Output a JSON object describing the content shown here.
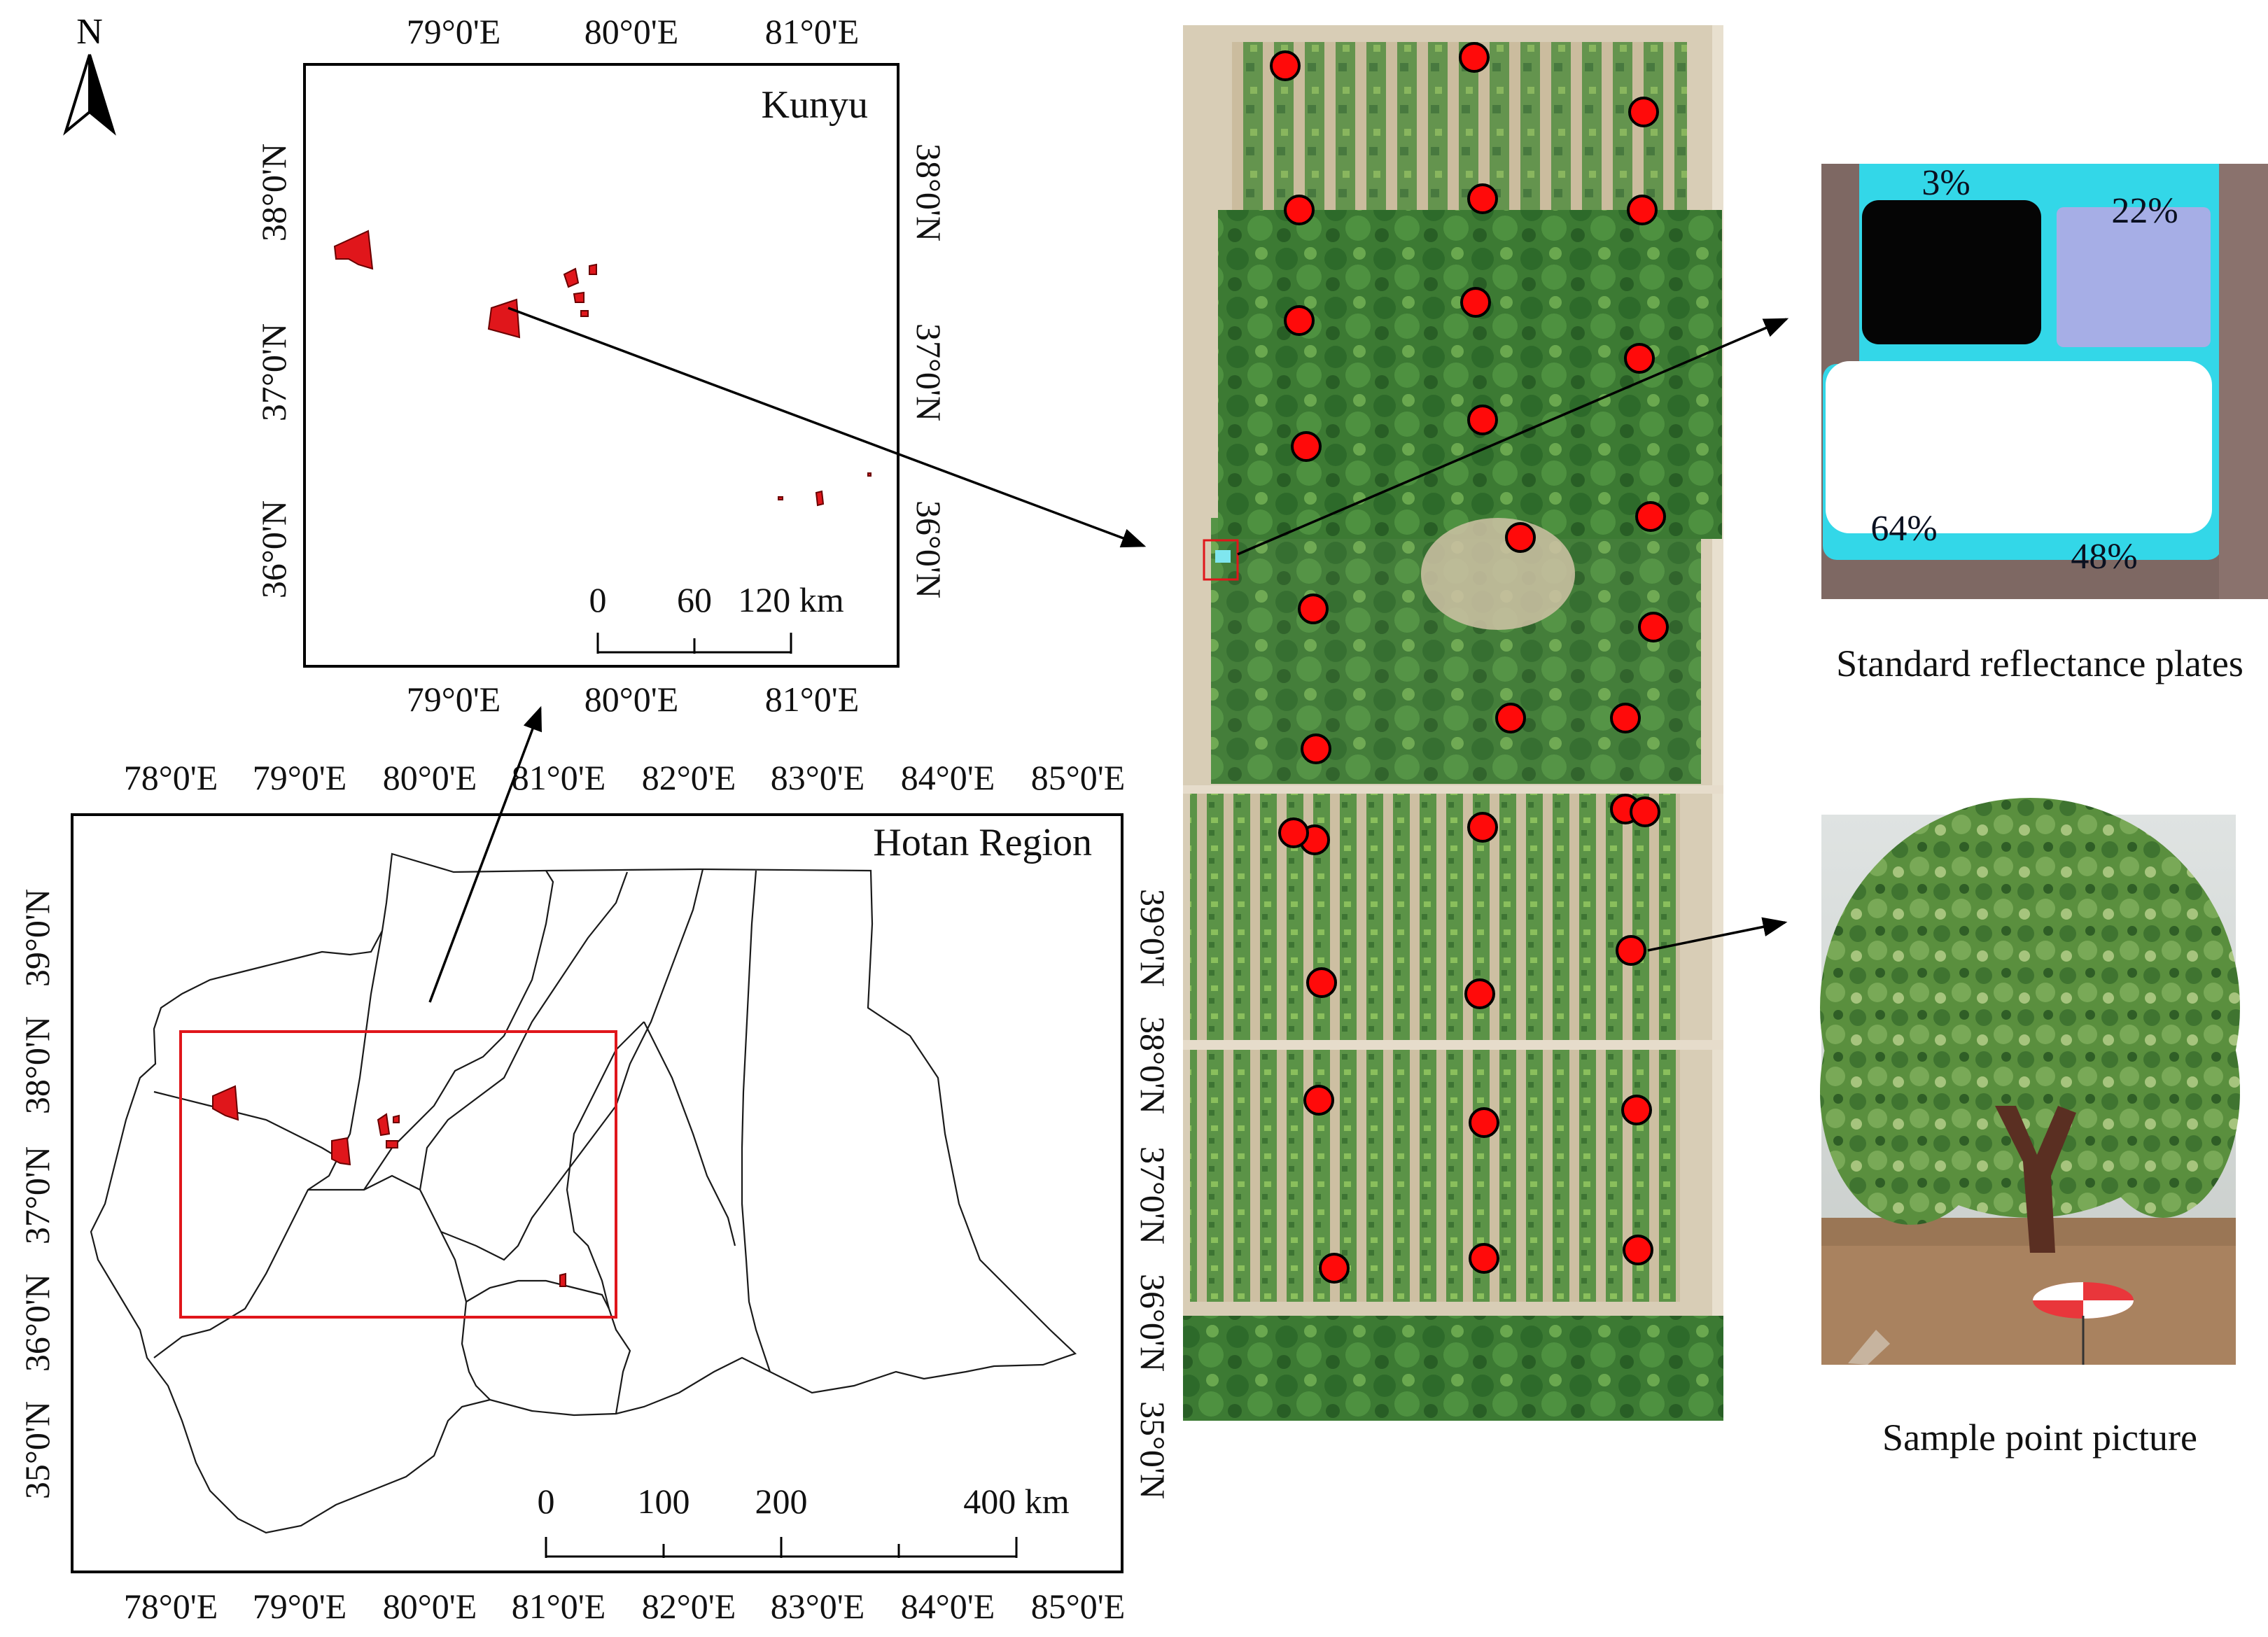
{
  "north": {
    "label": "N"
  },
  "kunyu_map": {
    "title": "Kunyu",
    "lon_ticks": [
      "79°0'E",
      "80°0'E",
      "81°0'E"
    ],
    "lat_ticks": [
      "38°0'N",
      "37°0'N",
      "36°0'N"
    ],
    "scalebar": {
      "labels": [
        "0",
        "60",
        "120 km"
      ]
    }
  },
  "hotan_map": {
    "title": "Hotan Region",
    "lon_ticks": [
      "78°0'E",
      "79°0'E",
      "80°0'E",
      "81°0'E",
      "82°0'E",
      "83°0'E",
      "84°0'E",
      "85°0'E"
    ],
    "lat_ticks": [
      "39°0'N",
      "38°0'N",
      "37°0'N",
      "36°0'N",
      "35°0'N"
    ],
    "scalebar": {
      "labels": [
        "0",
        "100",
        "200",
        "400 km"
      ]
    }
  },
  "aerial": {
    "sample_point_count": 32
  },
  "plates": {
    "caption": "Standard reflectance plates",
    "labels": [
      "3%",
      "22%",
      "64%",
      "48%"
    ]
  },
  "sample_photo": {
    "caption": "Sample point picture"
  },
  "colors": {
    "study_site_fill": "#e0161b",
    "extent_box": "#e0161b",
    "sample_point": "#ff0a0a",
    "vegetation": "#3f7d34"
  }
}
